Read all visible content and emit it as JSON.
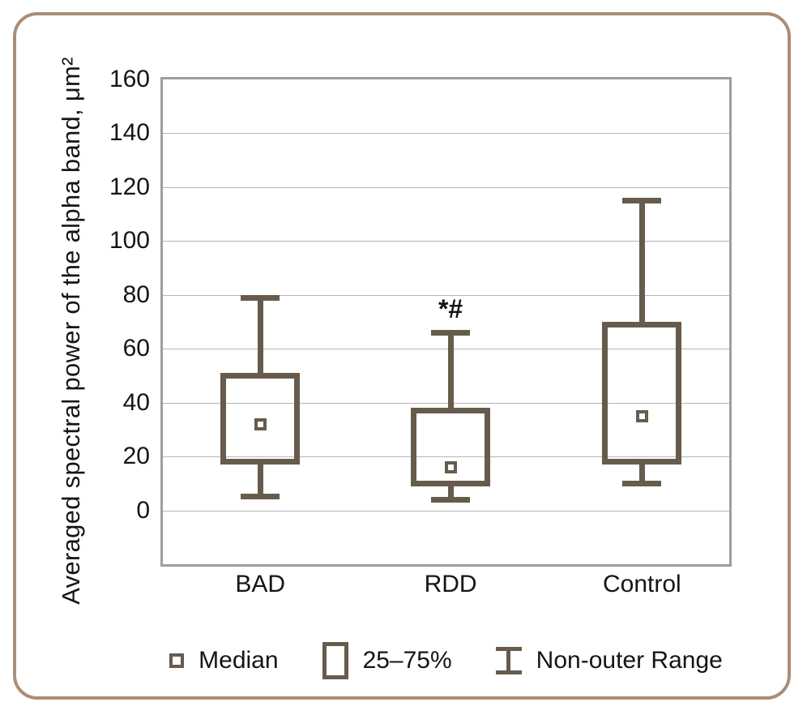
{
  "figure": {
    "border_color": "#a98e79"
  },
  "chart_data": {
    "type": "boxplot",
    "ylabel": "Averaged spectral power of the alpha band, μm²",
    "xlabel": "",
    "ylim": [
      -20,
      160
    ],
    "yticks": [
      0,
      20,
      40,
      60,
      80,
      100,
      120,
      140,
      160
    ],
    "grid": true,
    "categories": [
      "BAD",
      "RDD",
      "Control"
    ],
    "series": [
      {
        "name": "BAD",
        "whisker_low": 5,
        "q1": 18,
        "median": 32,
        "q3": 50,
        "whisker_high": 79,
        "annotation": ""
      },
      {
        "name": "RDD",
        "whisker_low": 4,
        "q1": 10,
        "median": 16,
        "q3": 37,
        "whisker_high": 66,
        "annotation": "*#"
      },
      {
        "name": "Control",
        "whisker_low": 10,
        "q1": 18,
        "median": 35,
        "q3": 69,
        "whisker_high": 115,
        "annotation": ""
      }
    ],
    "legend_position": "bottom",
    "legend": [
      {
        "icon": "median-square-icon",
        "label": "Median"
      },
      {
        "icon": "iqr-box-icon",
        "label": "25–75%"
      },
      {
        "icon": "whisker-icon",
        "label": "Non-outer Range"
      }
    ],
    "colors": {
      "box": "#675b4d",
      "grid": "#b5b5b5",
      "frame": "#9e9e9e",
      "text": "#151515"
    }
  }
}
